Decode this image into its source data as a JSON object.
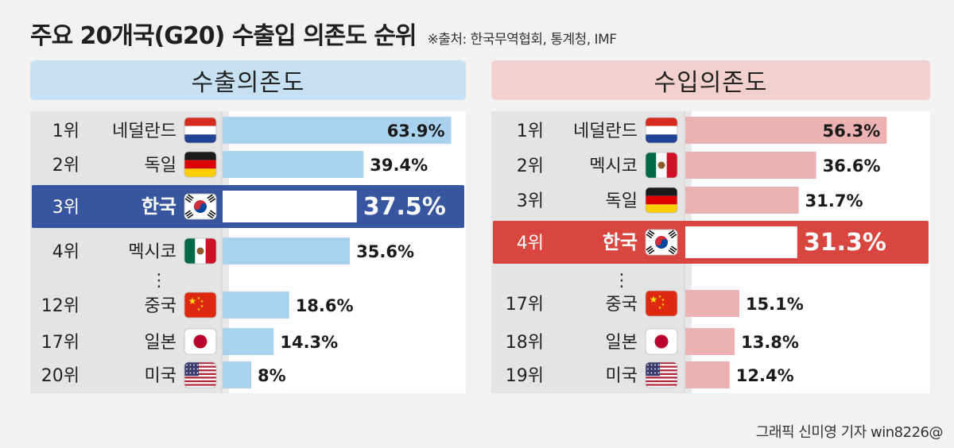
{
  "title": "주요 20개국(G20) 수출입 의존도 순위",
  "source": "※출처: 한국무역협회, 통계청, IMF",
  "credit": "그래픽 신미영 기자 win8226@",
  "colors": {
    "export_bar": "#a8d2ee",
    "import_bar": "#ebb2b1",
    "export_highlight": "#3856a0",
    "import_highlight": "#d9463f"
  },
  "chart_data": [
    {
      "type": "bar",
      "title": "수출의존도",
      "unit": "%",
      "highlight": "한국",
      "ranks": [
        "1위",
        "2위",
        "3위",
        "4위",
        "12위",
        "17위",
        "20위"
      ],
      "categories": [
        "네덜란드",
        "독일",
        "한국",
        "멕시코",
        "중국",
        "일본",
        "미국"
      ],
      "flag_icons": [
        "netherlands-flag-icon",
        "germany-flag-icon",
        "korea-flag-icon",
        "mexico-flag-icon",
        "china-flag-icon",
        "japan-flag-icon",
        "usa-flag-icon"
      ],
      "values": [
        63.9,
        39.4,
        37.5,
        35.6,
        18.6,
        14.3,
        8
      ],
      "labels": [
        "63.9%",
        "39.4%",
        "37.5%",
        "35.6%",
        "18.6%",
        "14.3%",
        "8%"
      ],
      "ellipsis": "⋮"
    },
    {
      "type": "bar",
      "title": "수입의존도",
      "unit": "%",
      "highlight": "한국",
      "ranks": [
        "1위",
        "2위",
        "3위",
        "4위",
        "17위",
        "18위",
        "19위"
      ],
      "categories": [
        "네덜란드",
        "멕시코",
        "독일",
        "한국",
        "중국",
        "일본",
        "미국"
      ],
      "flag_icons": [
        "netherlands-flag-icon",
        "mexico-flag-icon",
        "germany-flag-icon",
        "korea-flag-icon",
        "china-flag-icon",
        "japan-flag-icon",
        "usa-flag-icon"
      ],
      "values": [
        56.3,
        36.6,
        31.7,
        31.3,
        15.1,
        13.8,
        12.4
      ],
      "labels": [
        "56.3%",
        "36.6%",
        "31.7%",
        "31.3%",
        "15.1%",
        "13.8%",
        "12.4%"
      ],
      "ellipsis": "⋮"
    }
  ]
}
